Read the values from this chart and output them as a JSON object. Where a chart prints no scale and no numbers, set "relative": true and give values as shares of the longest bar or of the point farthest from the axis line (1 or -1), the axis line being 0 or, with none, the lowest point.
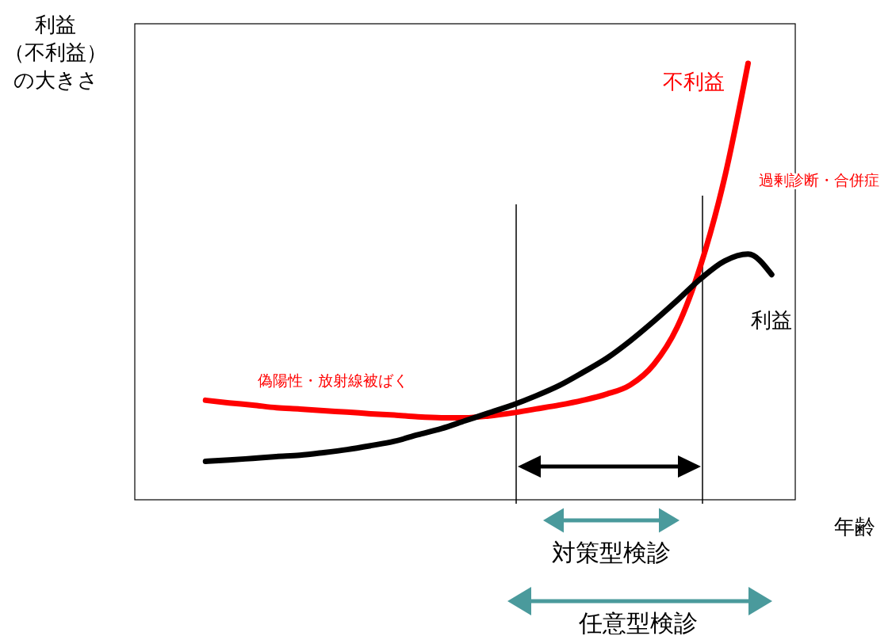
{
  "chart_data": {
    "type": "line",
    "relative": true,
    "xlabel": "年齢",
    "ylabel": "利益（不利益）の大きさ",
    "categories": [
      null,
      null,
      null,
      null,
      null,
      null,
      null,
      null,
      null,
      null,
      null,
      null,
      null,
      null,
      null,
      null,
      null,
      null,
      null,
      null,
      null,
      null,
      null,
      null,
      null,
      null,
      null,
      null,
      null
    ],
    "series": [
      {
        "name": "不利益",
        "color": "#ff0000",
        "values": [
          null,
          null,
          null,
          0.228,
          0.222,
          0.217,
          0.211,
          0.208,
          0.204,
          0.201,
          0.197,
          0.194,
          0.19,
          0.188,
          0.188,
          0.192,
          0.199,
          0.208,
          0.217,
          0.228,
          0.242,
          0.263,
          0.31,
          0.396,
          0.539,
          0.737,
          1,
          null,
          null
        ]
      },
      {
        "name": "利益",
        "color": "#000000",
        "values": [
          null,
          null,
          null,
          0.088,
          0.091,
          0.095,
          0.099,
          0.102,
          0.108,
          0.115,
          0.124,
          0.134,
          0.149,
          0.163,
          0.181,
          0.199,
          0.217,
          0.238,
          0.262,
          0.292,
          0.324,
          0.364,
          0.409,
          0.457,
          0.507,
          0.547,
          0.563,
          0.516,
          null
        ]
      }
    ],
    "annotations": [
      "偽陽性・放射線被ばく",
      "過剰診断・合併症",
      "対策型検診",
      "任意型検診"
    ]
  }
}
